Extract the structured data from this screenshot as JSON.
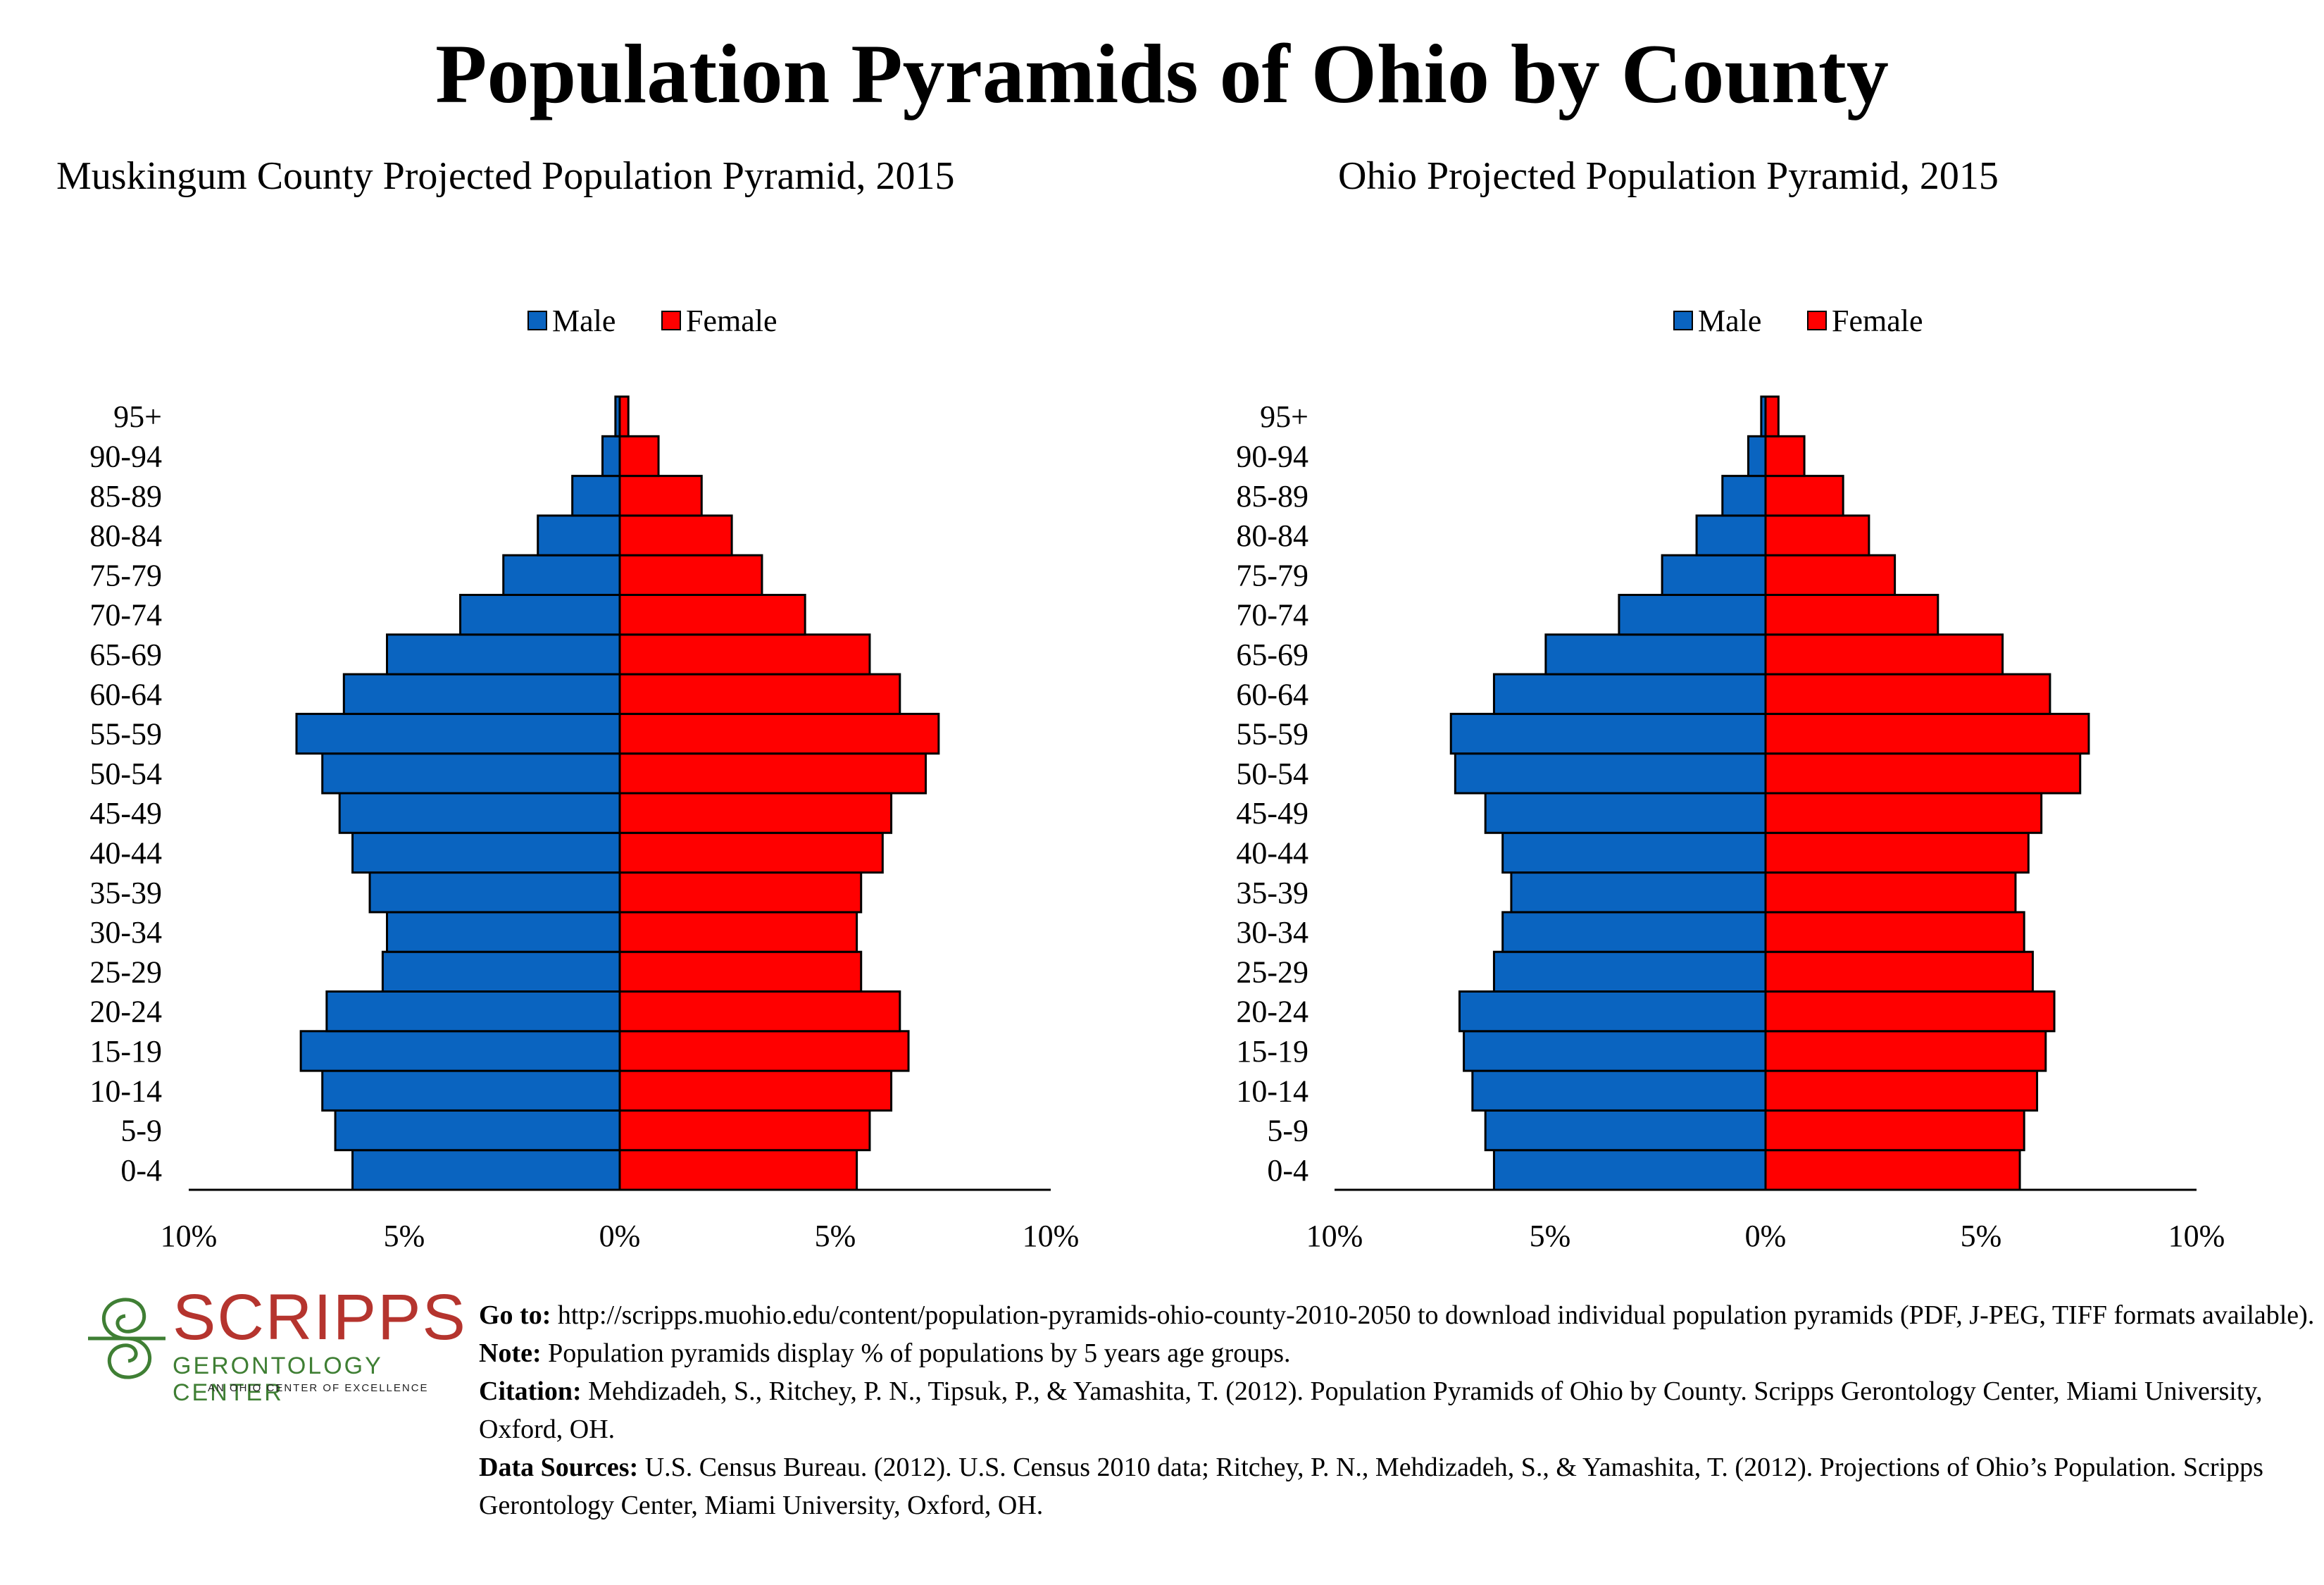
{
  "title": "Population Pyramids of Ohio by County",
  "colors": {
    "male": "#0a64c0",
    "female": "#ff0000"
  },
  "chart_data": [
    {
      "type": "bar",
      "title": "Muskingum County Projected Population Pyramid, 2015",
      "legend": [
        "Male",
        "Female"
      ],
      "legend_position": "top",
      "categories": [
        "0-4",
        "5-9",
        "10-14",
        "15-19",
        "20-24",
        "25-29",
        "30-34",
        "35-39",
        "40-44",
        "45-49",
        "50-54",
        "55-59",
        "60-64",
        "65-69",
        "70-74",
        "75-79",
        "80-84",
        "85-89",
        "90-94",
        "95+"
      ],
      "series": [
        {
          "name": "Male",
          "values": [
            6.2,
            6.6,
            6.9,
            7.4,
            6.8,
            5.5,
            5.4,
            5.8,
            6.2,
            6.5,
            6.9,
            7.5,
            6.4,
            5.4,
            3.7,
            2.7,
            1.9,
            1.1,
            0.4,
            0.1
          ]
        },
        {
          "name": "Female",
          "values": [
            5.5,
            5.8,
            6.3,
            6.7,
            6.5,
            5.6,
            5.5,
            5.6,
            6.1,
            6.3,
            7.1,
            7.4,
            6.5,
            5.8,
            4.3,
            3.3,
            2.6,
            1.9,
            0.9,
            0.2
          ]
        }
      ],
      "x_ticks": [
        "10%",
        "5%",
        "0%",
        "5%",
        "10%"
      ],
      "xlim": [
        -10,
        10
      ],
      "grid": false
    },
    {
      "type": "bar",
      "title": "Ohio Projected Population Pyramid, 2015",
      "legend": [
        "Male",
        "Female"
      ],
      "legend_position": "top",
      "categories": [
        "0-4",
        "5-9",
        "10-14",
        "15-19",
        "20-24",
        "25-29",
        "30-34",
        "35-39",
        "40-44",
        "45-49",
        "50-54",
        "55-59",
        "60-64",
        "65-69",
        "70-74",
        "75-79",
        "80-84",
        "85-89",
        "90-94",
        "95+"
      ],
      "series": [
        {
          "name": "Male",
          "values": [
            6.3,
            6.5,
            6.8,
            7.0,
            7.1,
            6.3,
            6.1,
            5.9,
            6.1,
            6.5,
            7.2,
            7.3,
            6.3,
            5.1,
            3.4,
            2.4,
            1.6,
            1.0,
            0.4,
            0.1
          ]
        },
        {
          "name": "Female",
          "values": [
            5.9,
            6.0,
            6.3,
            6.5,
            6.7,
            6.2,
            6.0,
            5.8,
            6.1,
            6.4,
            7.3,
            7.5,
            6.6,
            5.5,
            4.0,
            3.0,
            2.4,
            1.8,
            0.9,
            0.3
          ]
        }
      ],
      "x_ticks": [
        "10%",
        "5%",
        "0%",
        "5%",
        "10%"
      ],
      "xlim": [
        -10,
        10
      ],
      "grid": false
    }
  ],
  "logo": {
    "name": "SCRIPPS",
    "subtitle": "GERONTOLOGY CENTER",
    "tagline": "AN OHIO CENTER OF EXCELLENCE"
  },
  "footer": {
    "goto_label": "Go to:",
    "goto_text": " http://scripps.muohio.edu/content/population-pyramids-ohio-county-2010-2050 to download individual population pyramids (PDF, J-PEG, TIFF formats available).",
    "note_label": "Note:",
    "note_text": " Population pyramids display % of populations by 5 years age groups.",
    "citation_label": "Citation:",
    "citation_text": " Mehdizadeh, S., Ritchey, P. N., Tipsuk, P., & Yamashita, T. (2012). Population Pyramids of Ohio by County. Scripps Gerontology Center, Miami University, Oxford, OH.",
    "sources_label": "Data Sources:",
    "sources_text": " U.S. Census Bureau. (2012). U.S. Census 2010 data; Ritchey, P. N., Mehdizadeh, S., & Yamashita, T. (2012). Projections of Ohio’s Population. Scripps Gerontology Center, Miami University, Oxford, OH."
  }
}
